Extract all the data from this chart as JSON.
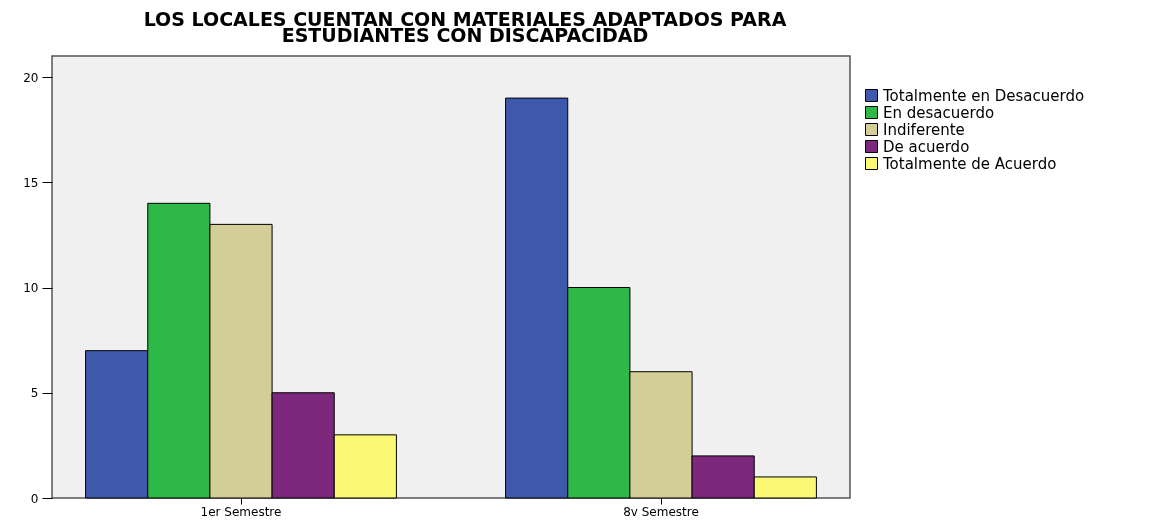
{
  "chart_data": {
    "type": "bar",
    "title": "LOS LOCALES CUENTAN CON MATERIALES ADAPTADOS PARA ESTUDIANTES CON DISCAPACIDAD",
    "categories": [
      "1er Semestre",
      "8v Semestre"
    ],
    "series": [
      {
        "name": "Totalmente en Desacuerdo",
        "color": "#3e58ac",
        "values": [
          7,
          19
        ]
      },
      {
        "name": "En desacuerdo",
        "color": "#2eb848",
        "values": [
          14,
          10
        ]
      },
      {
        "name": "Indiferente",
        "color": "#d3ce97",
        "values": [
          13,
          6
        ]
      },
      {
        "name": "De acuerdo",
        "color": "#7b287d",
        "values": [
          5,
          2
        ]
      },
      {
        "name": "Totalmente de Acuerdo",
        "color": "#fbf873",
        "values": [
          3,
          1
        ]
      }
    ],
    "ylim": [
      0,
      21
    ],
    "yticks": [
      0,
      5,
      10,
      15,
      20
    ],
    "legend": "right"
  }
}
